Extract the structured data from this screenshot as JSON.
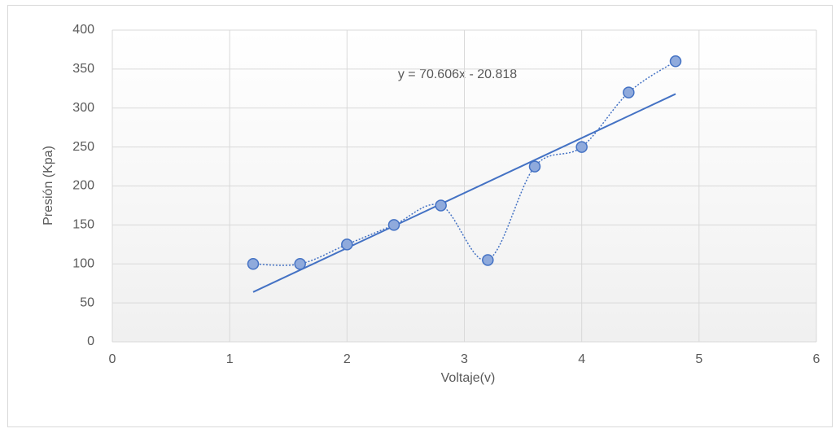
{
  "chart_data": {
    "type": "scatter",
    "x_label": "Voltaje(v)",
    "y_label": "Presión (Kpa)",
    "annotation": "y = 70.606x - 20.818",
    "x": [
      1.2,
      1.6,
      2,
      2.4,
      2.8,
      3.2,
      3.6,
      4,
      4.4,
      4.8
    ],
    "series": [
      {
        "color": "#4472c4",
        "values": [
          100,
          100,
          125,
          150,
          175,
          105,
          225,
          250,
          320,
          360
        ]
      }
    ],
    "xlim": [
      0,
      6
    ],
    "xticks": [
      0,
      1,
      2,
      3,
      4,
      5,
      6
    ],
    "ylim": [
      0,
      400
    ],
    "yticks": [
      0,
      50,
      100,
      150,
      200,
      250,
      300,
      350,
      400
    ],
    "grid": true,
    "smooth": true,
    "trendline": "linear"
  }
}
